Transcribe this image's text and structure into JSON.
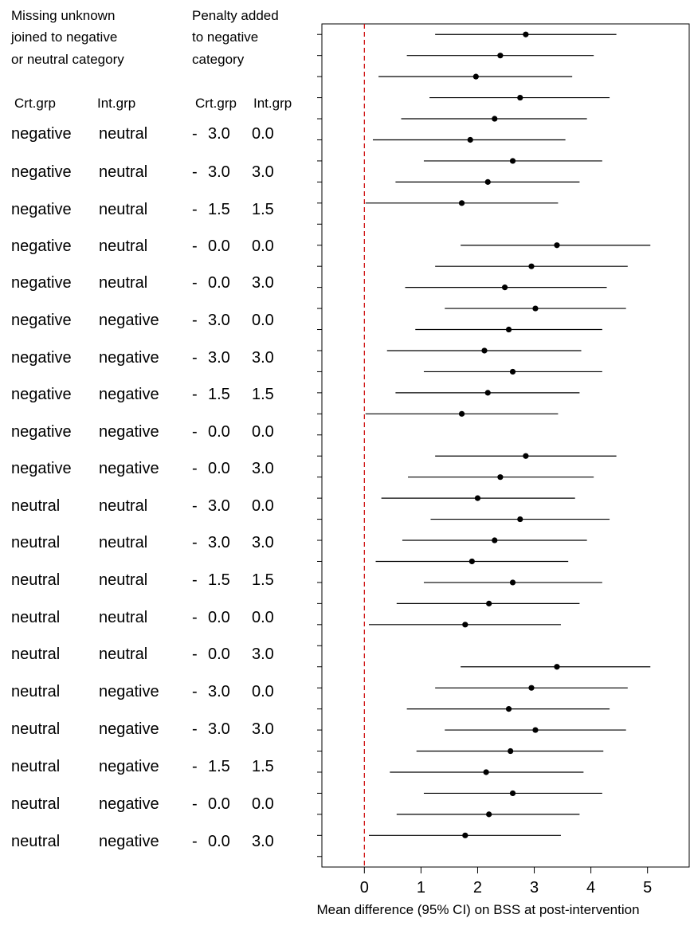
{
  "headers": {
    "missing_line1": "Missing unknown",
    "missing_line2": "joined to negative",
    "missing_line3": "or neutral category",
    "penalty_line1": "Penalty added",
    "penalty_line2": "to negative",
    "penalty_line3": "category",
    "crt_grp": "Crt.grp",
    "int_grp": "Int.grp",
    "crt_grp2": "Crt.grp",
    "int_grp2": "Int.grp"
  },
  "row_labels": [
    {
      "crt": "negative",
      "int": "neutral",
      "dash": "-",
      "p1": "3.0",
      "p2": "0.0"
    },
    {
      "crt": "negative",
      "int": "neutral",
      "dash": "-",
      "p1": "3.0",
      "p2": "3.0"
    },
    {
      "crt": "negative",
      "int": "neutral",
      "dash": "-",
      "p1": "1.5",
      "p2": "1.5"
    },
    {
      "crt": "negative",
      "int": "neutral",
      "dash": "-",
      "p1": "0.0",
      "p2": "0.0"
    },
    {
      "crt": "negative",
      "int": "neutral",
      "dash": "-",
      "p1": "0.0",
      "p2": "3.0"
    },
    {
      "crt": "negative",
      "int": "negative",
      "dash": "-",
      "p1": "3.0",
      "p2": "0.0"
    },
    {
      "crt": "negative",
      "int": "negative",
      "dash": "-",
      "p1": "3.0",
      "p2": "3.0"
    },
    {
      "crt": "negative",
      "int": "negative",
      "dash": "-",
      "p1": "1.5",
      "p2": "1.5"
    },
    {
      "crt": "negative",
      "int": "negative",
      "dash": "-",
      "p1": "0.0",
      "p2": "0.0"
    },
    {
      "crt": "negative",
      "int": "negative",
      "dash": "-",
      "p1": "0.0",
      "p2": "3.0"
    },
    {
      "crt": "neutral",
      "int": "neutral",
      "dash": "-",
      "p1": "3.0",
      "p2": "0.0"
    },
    {
      "crt": "neutral",
      "int": "neutral",
      "dash": "-",
      "p1": "3.0",
      "p2": "3.0"
    },
    {
      "crt": "neutral",
      "int": "neutral",
      "dash": "-",
      "p1": "1.5",
      "p2": "1.5"
    },
    {
      "crt": "neutral",
      "int": "neutral",
      "dash": "-",
      "p1": "0.0",
      "p2": "0.0"
    },
    {
      "crt": "neutral",
      "int": "neutral",
      "dash": "-",
      "p1": "0.0",
      "p2": "3.0"
    },
    {
      "crt": "neutral",
      "int": "negative",
      "dash": "-",
      "p1": "3.0",
      "p2": "0.0"
    },
    {
      "crt": "neutral",
      "int": "negative",
      "dash": "-",
      "p1": "3.0",
      "p2": "3.0"
    },
    {
      "crt": "neutral",
      "int": "negative",
      "dash": "-",
      "p1": "1.5",
      "p2": "1.5"
    },
    {
      "crt": "neutral",
      "int": "negative",
      "dash": "-",
      "p1": "0.0",
      "p2": "0.0"
    },
    {
      "crt": "neutral",
      "int": "negative",
      "dash": "-",
      "p1": "0.0",
      "p2": "3.0"
    }
  ],
  "colors": {
    "point": "#000000",
    "ci_line": "#000000",
    "reference_line": "#cc0000",
    "frame": "#000000"
  },
  "chart_data": {
    "type": "forest",
    "xlabel": "Mean difference (95% CI) on BSS at post-intervention",
    "ylabel": "",
    "title": "",
    "xlim": [
      -0.75,
      5.75
    ],
    "ylim": [
      0.5,
      40.5
    ],
    "x_ticks": [
      0,
      1,
      2,
      3,
      4,
      5
    ],
    "x_tick_labels": [
      "0",
      "1",
      "2",
      "3",
      "4",
      "5"
    ],
    "reference_line_x": 0,
    "grid": false,
    "estimates": [
      {
        "row": 40,
        "mean": 2.85,
        "lower": 1.25,
        "upper": 4.45
      },
      {
        "row": 39,
        "mean": 2.4,
        "lower": 0.75,
        "upper": 4.05
      },
      {
        "row": 38,
        "mean": 1.97,
        "lower": 0.25,
        "upper": 3.67
      },
      {
        "row": 37,
        "mean": 2.75,
        "lower": 1.15,
        "upper": 4.33
      },
      {
        "row": 36,
        "mean": 2.3,
        "lower": 0.65,
        "upper": 3.93
      },
      {
        "row": 35,
        "mean": 1.87,
        "lower": 0.15,
        "upper": 3.55
      },
      {
        "row": 34,
        "mean": 2.62,
        "lower": 1.05,
        "upper": 4.2
      },
      {
        "row": 33,
        "mean": 2.18,
        "lower": 0.55,
        "upper": 3.8
      },
      {
        "row": 32,
        "mean": 1.72,
        "lower": 0.02,
        "upper": 3.42
      },
      {
        "row": 30,
        "mean": 3.4,
        "lower": 1.7,
        "upper": 5.05
      },
      {
        "row": 29,
        "mean": 2.95,
        "lower": 1.25,
        "upper": 4.65
      },
      {
        "row": 28,
        "mean": 2.48,
        "lower": 0.72,
        "upper": 4.28
      },
      {
        "row": 27,
        "mean": 3.02,
        "lower": 1.42,
        "upper": 4.62
      },
      {
        "row": 26,
        "mean": 2.55,
        "lower": 0.9,
        "upper": 4.2
      },
      {
        "row": 25,
        "mean": 2.12,
        "lower": 0.4,
        "upper": 3.83
      },
      {
        "row": 24,
        "mean": 2.62,
        "lower": 1.05,
        "upper": 4.2
      },
      {
        "row": 23,
        "mean": 2.18,
        "lower": 0.55,
        "upper": 3.8
      },
      {
        "row": 22,
        "mean": 1.72,
        "lower": 0.02,
        "upper": 3.42
      },
      {
        "row": 20,
        "mean": 2.85,
        "lower": 1.25,
        "upper": 4.45
      },
      {
        "row": 19,
        "mean": 2.4,
        "lower": 0.77,
        "upper": 4.05
      },
      {
        "row": 18,
        "mean": 2.0,
        "lower": 0.3,
        "upper": 3.72
      },
      {
        "row": 17,
        "mean": 2.75,
        "lower": 1.17,
        "upper": 4.33
      },
      {
        "row": 16,
        "mean": 2.3,
        "lower": 0.67,
        "upper": 3.93
      },
      {
        "row": 15,
        "mean": 1.9,
        "lower": 0.2,
        "upper": 3.6
      },
      {
        "row": 14,
        "mean": 2.62,
        "lower": 1.05,
        "upper": 4.2
      },
      {
        "row": 13,
        "mean": 2.2,
        "lower": 0.57,
        "upper": 3.8
      },
      {
        "row": 12,
        "mean": 1.78,
        "lower": 0.08,
        "upper": 3.47
      },
      {
        "row": 10,
        "mean": 3.4,
        "lower": 1.7,
        "upper": 5.05
      },
      {
        "row": 9,
        "mean": 2.95,
        "lower": 1.25,
        "upper": 4.65
      },
      {
        "row": 8,
        "mean": 2.55,
        "lower": 0.75,
        "upper": 4.33
      },
      {
        "row": 7,
        "mean": 3.02,
        "lower": 1.42,
        "upper": 4.62
      },
      {
        "row": 6,
        "mean": 2.58,
        "lower": 0.92,
        "upper": 4.22
      },
      {
        "row": 5,
        "mean": 2.15,
        "lower": 0.45,
        "upper": 3.87
      },
      {
        "row": 4,
        "mean": 2.62,
        "lower": 1.05,
        "upper": 4.2
      },
      {
        "row": 3,
        "mean": 2.2,
        "lower": 0.57,
        "upper": 3.8
      },
      {
        "row": 2,
        "mean": 1.78,
        "lower": 0.08,
        "upper": 3.47
      }
    ]
  }
}
